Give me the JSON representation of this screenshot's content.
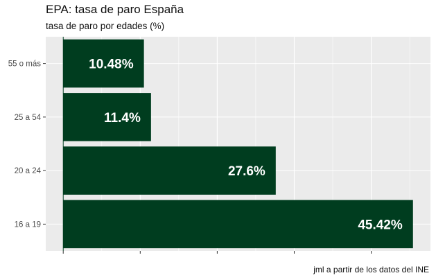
{
  "chart_data": {
    "type": "bar",
    "orientation": "horizontal",
    "title": "EPA: tasa de paro España",
    "subtitle": "tasa de paro por edades (%)",
    "caption": "jml a partir de los datos del INE",
    "xlabel": "",
    "ylabel": "",
    "categories": [
      "55 o más",
      "25 a 54",
      "20 a 24",
      "16 a 19"
    ],
    "values": [
      10.48,
      11.4,
      27.6,
      45.42
    ],
    "data_labels": [
      "10.48%",
      "11.4%",
      "27.6%",
      "45.42%"
    ],
    "xlim": [
      -2.27,
      47.69
    ],
    "x_major_ticks": [
      0,
      10,
      20,
      30,
      40
    ],
    "x_minor_ticks": [
      5,
      15,
      25,
      35,
      45
    ],
    "x_tick_labels_shown": false,
    "grid": true,
    "bar_color": "#003d1f",
    "panel_background": "#ebebeb",
    "grid_color": "#ffffff",
    "baseline_color": "#003d1f",
    "label_color": "#ffffff"
  }
}
